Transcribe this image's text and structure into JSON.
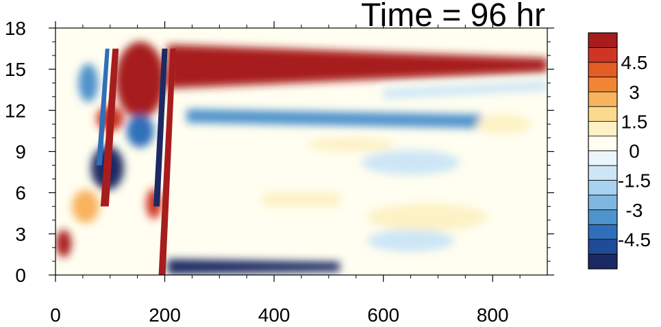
{
  "chart_data": {
    "type": "heatmap",
    "title": "Time = 96 hr",
    "xlabel": "",
    "ylabel": "",
    "xlim": [
      0,
      900
    ],
    "ylim": [
      0,
      18
    ],
    "x_ticks": [
      "0",
      "200",
      "400",
      "600",
      "800"
    ],
    "y_ticks": [
      "0",
      "3",
      "6",
      "9",
      "12",
      "15",
      "18"
    ],
    "colorbar": {
      "levels": [
        -6,
        -5.25,
        -4.5,
        -3.75,
        -3,
        -2.25,
        -1.5,
        -0.75,
        0,
        0.75,
        1.5,
        2.25,
        3,
        3.75,
        4.5,
        5.25,
        6
      ],
      "tick_labels": [
        "4.5",
        "3",
        "1.5",
        "0",
        "-1.5",
        "-3",
        "-4.5"
      ],
      "colors": [
        "#1c2a63",
        "#1f4b99",
        "#2f6fba",
        "#4f93cc",
        "#7fb6e0",
        "#a8d2ef",
        "#cde6f6",
        "#eaf5fc",
        "#fffef0",
        "#fdf1c5",
        "#fbd98f",
        "#f8b35f",
        "#f18534",
        "#e35d26",
        "#cf3524",
        "#a71d1d"
      ]
    },
    "grid": false,
    "features": [
      {
        "shape": "band",
        "x": [
          205,
          900
        ],
        "y_start": [
          15.2,
          15.2
        ],
        "y_end": [
          15.2,
          15.3
        ],
        "width": [
          3.2,
          1.0
        ],
        "value": 6
      },
      {
        "shape": "band",
        "x": [
          240,
          780
        ],
        "y_start": [
          11.6,
          11.2
        ],
        "y_end": [
          11.6,
          11.2
        ],
        "width": [
          1.0,
          1.0
        ],
        "value": -3.5
      },
      {
        "shape": "band",
        "x": [
          600,
          900
        ],
        "y_start": [
          13.2,
          13.8
        ],
        "y_end": [
          13.2,
          13.8
        ],
        "width": [
          0.7,
          0.7
        ],
        "value": -1.2
      },
      {
        "shape": "band",
        "x": [
          205,
          520
        ],
        "y_start": [
          0.6,
          0.6
        ],
        "y_end": [
          0.6,
          0.6
        ],
        "width": [
          1.1,
          0.7
        ],
        "value": -5.5
      },
      {
        "shape": "band",
        "x": [
          380,
          520
        ],
        "y_start": [
          5.5,
          5.5
        ],
        "y_end": [
          5.5,
          5.5
        ],
        "width": [
          1.0,
          1.0
        ],
        "value": 1.4
      },
      {
        "shape": "blob",
        "x": 155,
        "y": 14.2,
        "rx": 45,
        "ry": 2.8,
        "value": 6
      },
      {
        "shape": "blob",
        "x": 100,
        "y": 11.4,
        "rx": 25,
        "ry": 0.9,
        "value": 4.5
      },
      {
        "shape": "blob",
        "x": 95,
        "y": 7.8,
        "rx": 30,
        "ry": 1.6,
        "value": -5.5
      },
      {
        "shape": "blob",
        "x": 155,
        "y": 10.5,
        "rx": 25,
        "ry": 1.2,
        "value": -4.5
      },
      {
        "shape": "blob",
        "x": 60,
        "y": 14.0,
        "rx": 18,
        "ry": 1.4,
        "value": -3.5
      },
      {
        "shape": "blob",
        "x": 15,
        "y": 2.3,
        "rx": 14,
        "ry": 1.0,
        "value": 5.5
      },
      {
        "shape": "blob",
        "x": 180,
        "y": 5.2,
        "rx": 14,
        "ry": 1.1,
        "value": 5.0
      },
      {
        "shape": "blob",
        "x": 55,
        "y": 5.0,
        "rx": 25,
        "ry": 1.2,
        "value": 2.5
      },
      {
        "shape": "blob",
        "x": 540,
        "y": 9.5,
        "rx": 80,
        "ry": 0.5,
        "value": 1.0
      },
      {
        "shape": "blob",
        "x": 650,
        "y": 8.2,
        "rx": 90,
        "ry": 0.9,
        "value": -1.0
      },
      {
        "shape": "blob",
        "x": 680,
        "y": 4.2,
        "rx": 110,
        "ry": 1.0,
        "value": 0.9
      },
      {
        "shape": "blob",
        "x": 820,
        "y": 11.0,
        "rx": 50,
        "ry": 0.7,
        "value": 1.0
      },
      {
        "shape": "blob",
        "x": 650,
        "y": 2.5,
        "rx": 80,
        "ry": 0.8,
        "value": -0.9
      },
      {
        "shape": "line",
        "x": [
          195,
          215
        ],
        "y_start": [
          0,
          0
        ],
        "y_end": [
          16.5,
          17.8
        ],
        "width": [
          10,
          8
        ],
        "value": 5.5
      },
      {
        "shape": "line",
        "x": [
          185,
          200
        ],
        "y_start": [
          5,
          0
        ],
        "y_end": [
          16.5,
          12
        ],
        "width": [
          9,
          8
        ],
        "value": -5.5
      },
      {
        "shape": "line",
        "x": [
          90,
          110
        ],
        "y_start": [
          5,
          0
        ],
        "y_end": [
          16.5,
          17
        ],
        "width": [
          12,
          9
        ],
        "value": 5.5
      },
      {
        "shape": "line",
        "x": [
          80,
          95
        ],
        "y_start": [
          8,
          5
        ],
        "y_end": [
          16.5,
          17
        ],
        "width": [
          8,
          6
        ],
        "value": -4.5
      }
    ]
  }
}
